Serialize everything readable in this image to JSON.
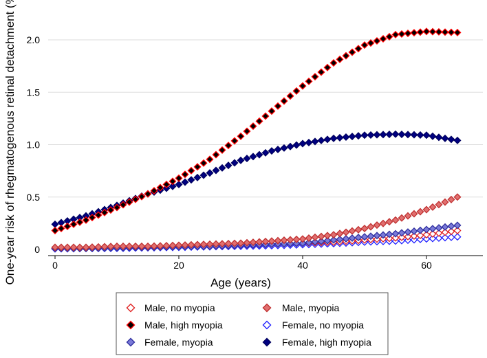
{
  "chart_data": {
    "type": "scatter",
    "title": "",
    "xlabel": "Age (years)",
    "ylabel": "One-year risk of rhegmatogenous retinal detachment (%)",
    "xlim": [
      -1,
      66
    ],
    "ylim": [
      0,
      2.2
    ],
    "xticks": [
      0,
      20,
      40,
      60
    ],
    "xtick_labels": [
      "0",
      "20",
      "40",
      "60"
    ],
    "yticks": [
      0,
      0.5,
      1.0,
      1.5,
      2.0
    ],
    "ytick_labels": [
      "0",
      "0.5",
      "1.0",
      "1.5",
      "2.0"
    ],
    "legend_position": "bottom",
    "x": [
      0,
      5,
      10,
      15,
      20,
      25,
      30,
      35,
      40,
      45,
      50,
      55,
      60,
      65
    ],
    "series": [
      {
        "name": "Male, no myopia",
        "marker": "hollow",
        "fill": "#ffffff",
        "stroke": "#e02020",
        "values": [
          0.01,
          0.01,
          0.02,
          0.02,
          0.03,
          0.03,
          0.04,
          0.05,
          0.06,
          0.07,
          0.09,
          0.11,
          0.14,
          0.18
        ]
      },
      {
        "name": "Male, myopia",
        "marker": "filled",
        "fill": "#e07070",
        "stroke": "#c03030",
        "values": [
          0.02,
          0.02,
          0.03,
          0.03,
          0.04,
          0.05,
          0.06,
          0.08,
          0.1,
          0.14,
          0.2,
          0.28,
          0.38,
          0.5
        ]
      },
      {
        "name": "Male, high myopia",
        "marker": "filled",
        "fill": "#000000",
        "stroke": "#ff0000",
        "values": [
          0.18,
          0.28,
          0.4,
          0.53,
          0.68,
          0.86,
          1.08,
          1.32,
          1.56,
          1.78,
          1.95,
          2.05,
          2.08,
          2.07
        ]
      },
      {
        "name": "Female, no myopia",
        "marker": "hollow",
        "fill": "#ffffff",
        "stroke": "#2020ff",
        "values": [
          0.005,
          0.008,
          0.01,
          0.015,
          0.02,
          0.025,
          0.03,
          0.035,
          0.045,
          0.055,
          0.07,
          0.08,
          0.1,
          0.12
        ]
      },
      {
        "name": "Female, myopia",
        "marker": "filled",
        "fill": "#7a7ad8",
        "stroke": "#3030a0",
        "values": [
          0.01,
          0.01,
          0.015,
          0.02,
          0.025,
          0.03,
          0.04,
          0.05,
          0.06,
          0.09,
          0.12,
          0.15,
          0.19,
          0.23
        ]
      },
      {
        "name": "Female, high myopia",
        "marker": "filled",
        "fill": "#000080",
        "stroke": "#000060",
        "values": [
          0.24,
          0.32,
          0.42,
          0.53,
          0.62,
          0.73,
          0.85,
          0.94,
          1.01,
          1.06,
          1.09,
          1.1,
          1.09,
          1.04
        ]
      }
    ]
  }
}
